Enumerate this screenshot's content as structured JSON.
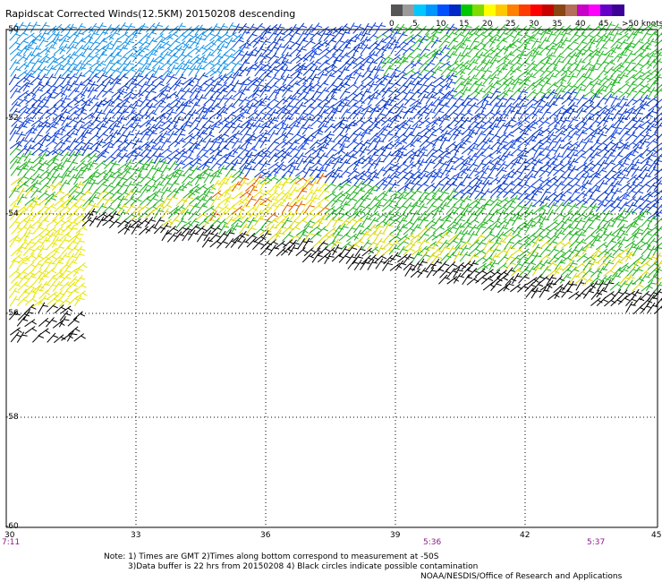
{
  "title": "Rapidscat Corrected Winds(12.5KM) 20150208 descending",
  "legend": {
    "colors": [
      "#555555",
      "#9a9a9a",
      "#00c8ff",
      "#0096ff",
      "#0050ff",
      "#0028c8",
      "#00c800",
      "#80dc00",
      "#ffff00",
      "#ffc800",
      "#ff8000",
      "#ff3c00",
      "#ff0000",
      "#c80000",
      "#8b4513",
      "#b46e5a",
      "#c800c8",
      "#ff00ff",
      "#6400c8",
      "#3c0096"
    ],
    "labels": [
      "0",
      "5",
      "10",
      "15",
      "20",
      "25",
      "30",
      "35",
      "40",
      "45",
      ">50 knots"
    ]
  },
  "lat_labels": [
    "-50",
    "-52",
    "-54",
    "-56",
    "-58",
    "-60"
  ],
  "lon_labels": [
    "30",
    "33",
    "36",
    "39",
    "42",
    "45"
  ],
  "time_labels": [
    "7:11",
    "5:36",
    "5:37"
  ],
  "note": {
    "line1": "Note: 1) Times are GMT 2)Times along bottom correspond to measurement at -50S",
    "line2": "3)Data buffer is 22 hrs from 20150208 4) Black circles indicate possible contamination"
  },
  "credit": "NOAA/NESDIS/Office of Research and Applications"
}
